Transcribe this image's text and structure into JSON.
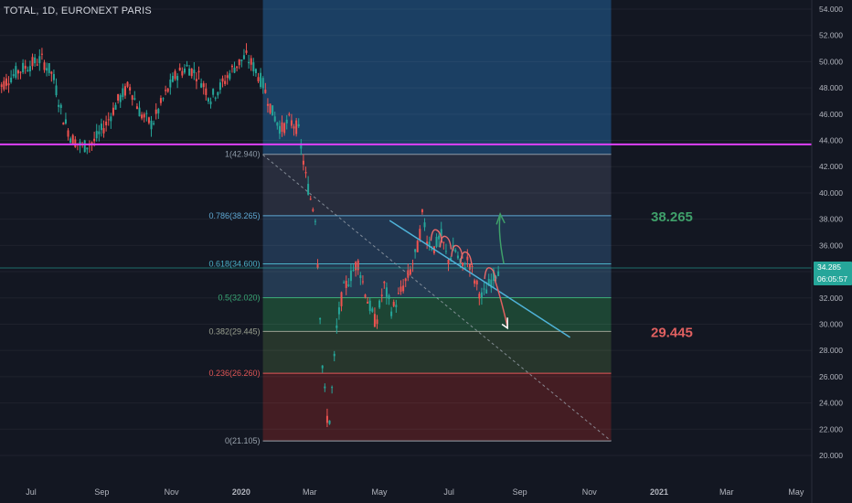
{
  "header": {
    "title": "TOTAL, 1D, EURONEXT PARIS"
  },
  "colors": {
    "background": "#131722",
    "up": "#26a69a",
    "down": "#ef5350",
    "horizontal_line": "#e040fb",
    "trendline": "#4fb3d9",
    "target_up": "#3fa06a",
    "target_down": "#e06060",
    "price_badge": "#26a69a"
  },
  "chart_data": {
    "type": "candlestick",
    "title": "TOTAL, 1D, EURONEXT PARIS",
    "xlabel": "",
    "ylabel": "",
    "ylim": [
      19.2,
      54.8
    ],
    "x_ticks": [
      {
        "label": "Jul",
        "date": "2019-07-01"
      },
      {
        "label": "Sep",
        "date": "2019-09-01"
      },
      {
        "label": "Nov",
        "date": "2019-11-01"
      },
      {
        "label": "2020",
        "date": "2020-01-01",
        "bold": true
      },
      {
        "label": "Mar",
        "date": "2020-03-01"
      },
      {
        "label": "May",
        "date": "2020-05-01"
      },
      {
        "label": "Jul",
        "date": "2020-07-01"
      },
      {
        "label": "Sep",
        "date": "2020-09-01"
      },
      {
        "label": "Nov",
        "date": "2020-11-01"
      },
      {
        "label": "2021",
        "date": "2021-01-01",
        "bold": true
      },
      {
        "label": "Mar",
        "date": "2021-03-01"
      },
      {
        "label": "May",
        "date": "2021-05-01"
      }
    ],
    "y_ticks": [
      "20.000",
      "22.000",
      "24.000",
      "26.000",
      "28.000",
      "30.000",
      "32.000",
      "34.000",
      "36.000",
      "38.000",
      "40.000",
      "42.000",
      "44.000",
      "46.000",
      "48.000",
      "50.000",
      "52.000",
      "54.000"
    ],
    "price_path": [
      [
        "2019-06-01",
        47.8
      ],
      [
        "2019-06-10",
        48.6
      ],
      [
        "2019-06-20",
        49.3
      ],
      [
        "2019-07-01",
        49.8
      ],
      [
        "2019-07-10",
        50.2
      ],
      [
        "2019-07-20",
        49.0
      ],
      [
        "2019-07-28",
        46.0
      ],
      [
        "2019-08-05",
        44.2
      ],
      [
        "2019-08-15",
        43.5
      ],
      [
        "2019-08-25",
        43.9
      ],
      [
        "2019-09-05",
        45.3
      ],
      [
        "2019-09-15",
        47.0
      ],
      [
        "2019-09-25",
        48.2
      ],
      [
        "2019-10-05",
        46.0
      ],
      [
        "2019-10-15",
        45.2
      ],
      [
        "2019-10-25",
        47.2
      ],
      [
        "2019-11-05",
        49.0
      ],
      [
        "2019-11-15",
        49.6
      ],
      [
        "2019-11-25",
        48.9
      ],
      [
        "2019-12-05",
        47.2
      ],
      [
        "2019-12-15",
        48.2
      ],
      [
        "2019-12-25",
        49.5
      ],
      [
        "2020-01-05",
        50.4
      ],
      [
        "2020-01-12",
        49.6
      ],
      [
        "2020-01-20",
        48.3
      ],
      [
        "2020-01-28",
        46.2
      ],
      [
        "2020-02-05",
        44.8
      ],
      [
        "2020-02-12",
        45.5
      ],
      [
        "2020-02-20",
        44.9
      ],
      [
        "2020-02-27",
        41.0
      ],
      [
        "2020-03-02",
        39.5
      ],
      [
        "2020-03-06",
        38.2
      ],
      [
        "2020-03-09",
        33.0
      ],
      [
        "2020-03-12",
        27.0
      ],
      [
        "2020-03-16",
        23.0
      ],
      [
        "2020-03-18",
        22.2
      ],
      [
        "2020-03-20",
        24.5
      ],
      [
        "2020-03-25",
        30.0
      ],
      [
        "2020-03-30",
        32.5
      ],
      [
        "2020-04-05",
        33.5
      ],
      [
        "2020-04-12",
        34.8
      ],
      [
        "2020-04-20",
        32.0
      ],
      [
        "2020-04-28",
        30.0
      ],
      [
        "2020-05-05",
        33.0
      ],
      [
        "2020-05-12",
        31.0
      ],
      [
        "2020-05-20",
        32.5
      ],
      [
        "2020-05-28",
        34.0
      ],
      [
        "2020-06-04",
        36.0
      ],
      [
        "2020-06-08",
        38.5
      ],
      [
        "2020-06-12",
        36.4
      ],
      [
        "2020-06-18",
        35.8
      ],
      [
        "2020-06-24",
        36.8
      ],
      [
        "2020-06-30",
        34.8
      ],
      [
        "2020-07-06",
        35.8
      ],
      [
        "2020-07-12",
        34.2
      ],
      [
        "2020-07-18",
        35.0
      ],
      [
        "2020-07-24",
        33.2
      ],
      [
        "2020-07-30",
        32.0
      ],
      [
        "2020-08-05",
        33.0
      ],
      [
        "2020-08-10",
        33.8
      ],
      [
        "2020-08-14",
        34.3
      ]
    ],
    "fibonacci": {
      "start_date": "2020-01-20",
      "end_date": "2020-11-20",
      "levels": [
        {
          "ratio": "1",
          "price": 42.94,
          "label": "1(42.940)"
        },
        {
          "ratio": "0.786",
          "price": 38.265,
          "label": "0.786(38.265)"
        },
        {
          "ratio": "0.618",
          "price": 34.6,
          "label": "0.618(34.600)"
        },
        {
          "ratio": "0.5",
          "price": 32.02,
          "label": "0.5(32.020)"
        },
        {
          "ratio": "0.382",
          "price": 29.445,
          "label": "0.382(29.445)"
        },
        {
          "ratio": "0.236",
          "price": 26.26,
          "label": "0.236(26.260)"
        },
        {
          "ratio": "0",
          "price": 21.105,
          "label": "0(21.105)"
        }
      ]
    },
    "horizontal_line": {
      "price": 43.7
    },
    "trendline": {
      "from": [
        "2020-05-10",
        37.9
      ],
      "to": [
        "2020-10-15",
        29.0
      ]
    },
    "dashed_line": {
      "from": [
        "2020-01-20",
        42.9
      ],
      "to": [
        "2020-11-20",
        21.1
      ]
    },
    "targets": [
      {
        "label": "38.265",
        "price": 38.265,
        "kind": "up"
      },
      {
        "label": "29.445",
        "price": 29.445,
        "kind": "down"
      }
    ],
    "current_price": {
      "label": "34.285",
      "price": 34.285,
      "countdown": "06:05:57"
    }
  }
}
